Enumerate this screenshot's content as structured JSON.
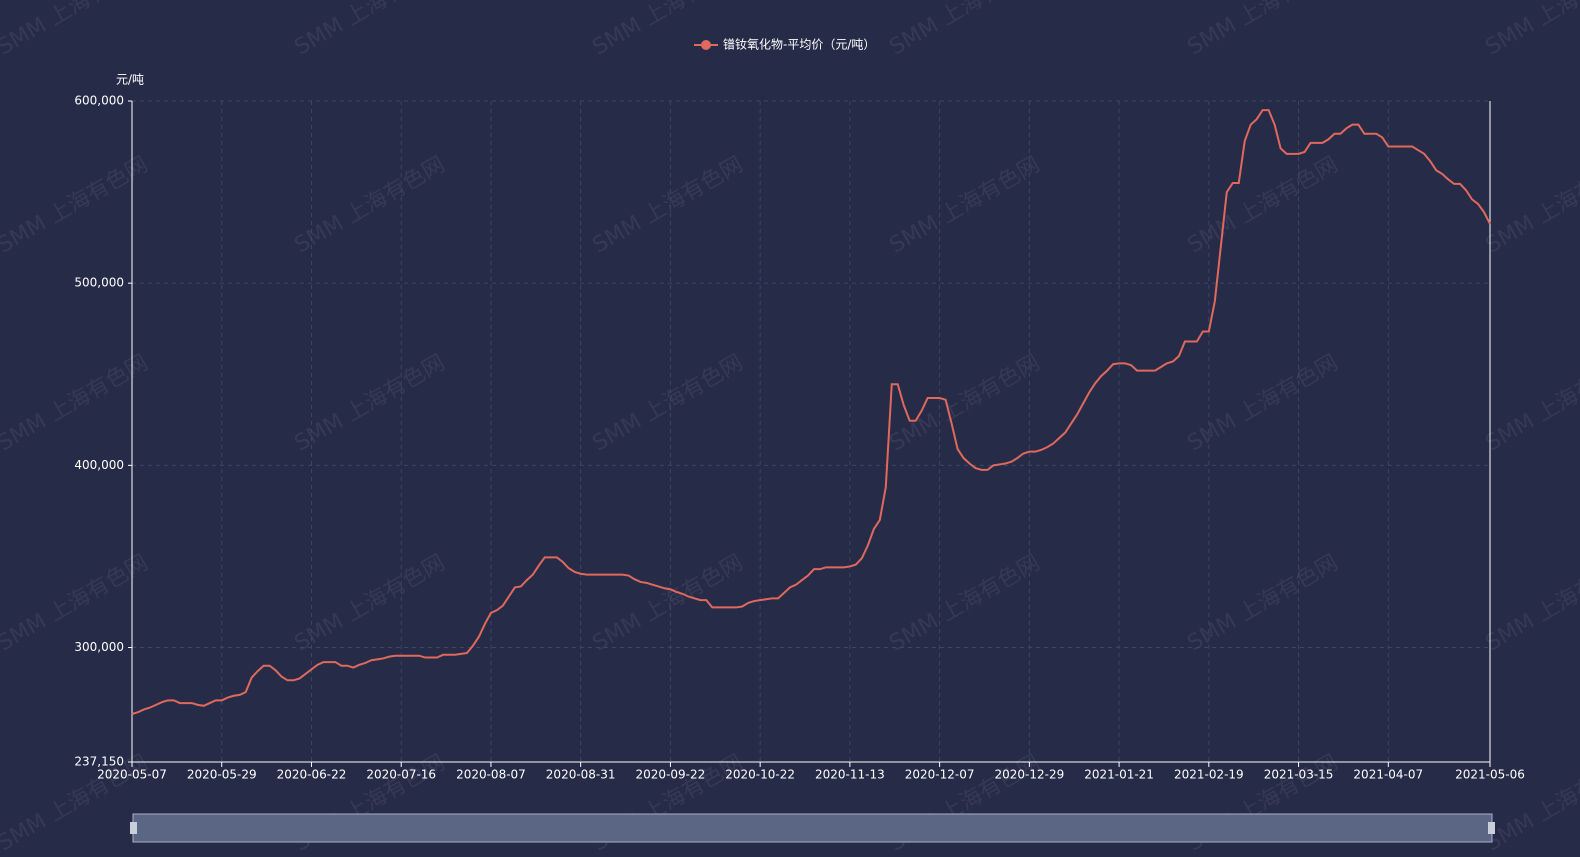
{
  "chart_data": {
    "type": "line",
    "watermark": "SMM 上海有色网",
    "y_axis_label": "元/吨",
    "categories": [
      "2020-05-07",
      null,
      null,
      null,
      null,
      null,
      null,
      null,
      null,
      null,
      null,
      null,
      null,
      null,
      null,
      "2020-05-29",
      null,
      null,
      null,
      null,
      null,
      null,
      null,
      null,
      null,
      null,
      null,
      null,
      null,
      null,
      "2020-06-22",
      null,
      null,
      null,
      null,
      null,
      null,
      null,
      null,
      null,
      null,
      null,
      null,
      null,
      null,
      "2020-07-16",
      null,
      null,
      null,
      null,
      null,
      null,
      null,
      null,
      null,
      null,
      null,
      null,
      null,
      null,
      "2020-08-07",
      null,
      null,
      null,
      null,
      null,
      null,
      null,
      null,
      null,
      null,
      null,
      null,
      null,
      null,
      "2020-08-31",
      null,
      null,
      null,
      null,
      null,
      null,
      null,
      null,
      null,
      null,
      null,
      null,
      null,
      null,
      "2020-09-22",
      null,
      null,
      null,
      null,
      null,
      null,
      null,
      null,
      null,
      null,
      null,
      null,
      null,
      null,
      "2020-10-22",
      null,
      null,
      null,
      null,
      null,
      null,
      null,
      null,
      null,
      null,
      null,
      null,
      null,
      null,
      "2020-11-13",
      null,
      null,
      null,
      null,
      null,
      null,
      null,
      null,
      null,
      null,
      null,
      null,
      null,
      null,
      "2020-12-07",
      null,
      null,
      null,
      null,
      null,
      null,
      null,
      null,
      null,
      null,
      null,
      null,
      null,
      null,
      "2020-12-29",
      null,
      null,
      null,
      null,
      null,
      null,
      null,
      null,
      null,
      null,
      null,
      null,
      null,
      null,
      "2021-01-21",
      null,
      null,
      null,
      null,
      null,
      null,
      null,
      null,
      null,
      null,
      null,
      null,
      null,
      null,
      "2021-02-19",
      null,
      null,
      null,
      null,
      null,
      null,
      null,
      null,
      null,
      null,
      null,
      null,
      null,
      null,
      "2021-03-15",
      null,
      null,
      null,
      null,
      null,
      null,
      null,
      null,
      null,
      null,
      null,
      null,
      null,
      null,
      "2021-04-07",
      null,
      null,
      null,
      null,
      null,
      null,
      null,
      null,
      null,
      null,
      null,
      null,
      null,
      null,
      null,
      null,
      "2021-05-06"
    ],
    "series": [
      {
        "name": "镨钕氧化物-平均价（元/吨）",
        "color": "#e0695e",
        "values": [
          263500,
          264500,
          266000,
          267000,
          268500,
          270000,
          271000,
          271000,
          269500,
          269500,
          269500,
          268500,
          268000,
          269500,
          271000,
          271000,
          272500,
          273500,
          274000,
          275500,
          283500,
          287000,
          290000,
          290000,
          287500,
          284000,
          282000,
          282000,
          283000,
          285500,
          288000,
          290500,
          292000,
          292000,
          292000,
          290000,
          290000,
          289000,
          290500,
          291500,
          293000,
          293500,
          294000,
          295000,
          295500,
          295500,
          295500,
          295500,
          295500,
          294500,
          294500,
          294500,
          296000,
          296000,
          296000,
          296500,
          297000,
          301000,
          306000,
          313000,
          319000,
          320500,
          323000,
          328000,
          333000,
          333500,
          337000,
          340000,
          345000,
          349500,
          349500,
          349500,
          347000,
          343500,
          341500,
          340500,
          340000,
          340000,
          340000,
          340000,
          340000,
          340000,
          340000,
          339500,
          337500,
          336000,
          335500,
          334500,
          333500,
          332500,
          332000,
          330500,
          329500,
          328000,
          327000,
          326000,
          326000,
          322000,
          322000,
          322000,
          322000,
          322000,
          322500,
          324500,
          325500,
          326000,
          326500,
          327000,
          327000,
          330000,
          333000,
          334500,
          337000,
          339500,
          343000,
          343000,
          344000,
          344000,
          344000,
          344000,
          344500,
          345500,
          349000,
          356000,
          365000,
          370000,
          388000,
          444500,
          444500,
          433000,
          424500,
          424500,
          430000,
          437000,
          437000,
          437000,
          436000,
          423000,
          409000,
          404000,
          401000,
          398500,
          397500,
          397500,
          400000,
          400500,
          401000,
          402000,
          404000,
          406500,
          407500,
          407500,
          408500,
          410000,
          412000,
          415000,
          418000,
          423000,
          428000,
          434000,
          440000,
          445000,
          449000,
          452000,
          455500,
          456000,
          456000,
          455000,
          452000,
          452000,
          452000,
          452000,
          454000,
          456000,
          457000,
          460000,
          468000,
          468000,
          468000,
          473500,
          473500,
          490000,
          520000,
          550000,
          555000,
          555000,
          578000,
          587000,
          590000,
          595000,
          595000,
          587000,
          574000,
          571000,
          571000,
          571000,
          572000,
          577000,
          577000,
          577000,
          579000,
          582000,
          582000,
          585000,
          587000,
          587000,
          582000,
          582000,
          582000,
          580000,
          575000,
          575000,
          575000,
          575000,
          575000,
          573000,
          571000,
          567000,
          562000,
          560000,
          557000,
          554500,
          554500,
          551000,
          546000,
          543500,
          539000,
          532500
        ]
      }
    ],
    "ylim": [
      237150,
      600000
    ],
    "yticks": [
      {
        "value": 237150,
        "label": "237,150"
      },
      {
        "value": 300000,
        "label": "300,000"
      },
      {
        "value": 400000,
        "label": "400,000"
      },
      {
        "value": 500000,
        "label": "500,000"
      },
      {
        "value": 600000,
        "label": "600,000"
      }
    ],
    "grid": true
  }
}
